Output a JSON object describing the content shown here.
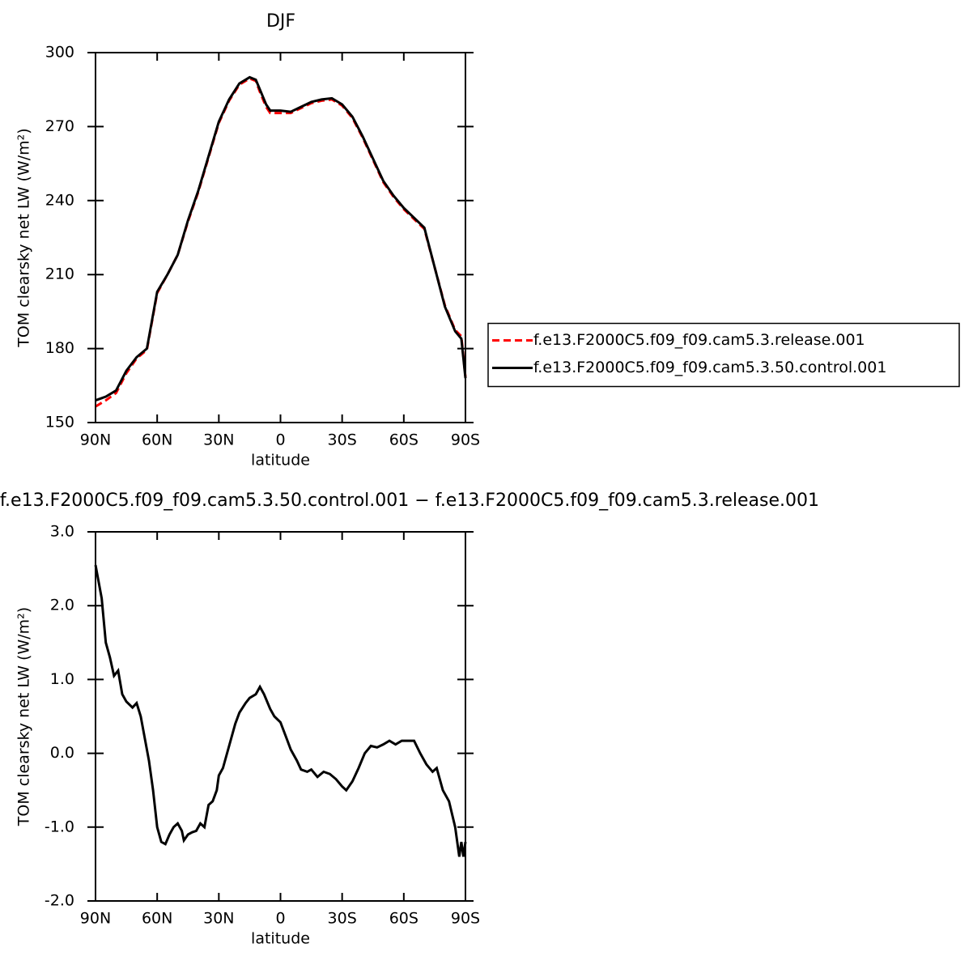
{
  "chart_data": [
    {
      "type": "line",
      "title": "DJF",
      "xlabel": "latitude",
      "ylabel": "TOM clearsky net LW (W/m²)",
      "x": [
        90,
        85,
        80,
        75,
        70,
        65,
        60,
        55,
        50,
        45,
        40,
        35,
        30,
        25,
        20,
        15,
        12,
        10,
        7,
        5,
        0,
        -5,
        -10,
        -15,
        -20,
        -25,
        -30,
        -35,
        -40,
        -45,
        -50,
        -55,
        -60,
        -65,
        -70,
        -75,
        -80,
        -85,
        -88,
        -90
      ],
      "series": [
        {
          "name": "f.e13.F2000C5.f09_f09.cam5.3.release.001",
          "color": "#ff0000",
          "dashed": true,
          "values": [
            156.5,
            159,
            162,
            170,
            176,
            179.5,
            202.5,
            210,
            218,
            231.5,
            243.5,
            257.5,
            271.5,
            280.5,
            287,
            289.5,
            288.5,
            284,
            278,
            275.5,
            275.5,
            275.5,
            277.5,
            279.5,
            280.5,
            281,
            278.5,
            273.5,
            265.5,
            256.5,
            247.5,
            241.5,
            236.5,
            232.5,
            228.5,
            213,
            197.5,
            187.5,
            185,
            168.5
          ]
        },
        {
          "name": "f.e13.F2000C5.f09_f09.cam5.3.50.control.001",
          "color": "#000000",
          "dashed": false,
          "values": [
            159,
            160.5,
            163,
            171,
            176.5,
            180,
            203,
            210,
            218,
            232,
            244,
            258,
            272,
            281,
            287.5,
            290,
            289,
            285,
            279,
            276.5,
            276.5,
            276,
            278,
            280,
            281,
            281.5,
            279,
            274,
            266,
            257,
            248,
            242,
            237,
            233,
            229,
            213,
            197,
            187,
            184,
            168
          ]
        }
      ],
      "xlim": [
        90,
        -90
      ],
      "xticks": [
        {
          "value": 90,
          "label": "90N"
        },
        {
          "value": 60,
          "label": "60N"
        },
        {
          "value": 30,
          "label": "30N"
        },
        0,
        {
          "value": -30,
          "label": "30S"
        },
        {
          "value": -60,
          "label": "60S"
        },
        {
          "value": -90,
          "label": "90S"
        }
      ],
      "ylim": [
        150,
        300
      ],
      "yticks": [
        150,
        180,
        210,
        240,
        270,
        300
      ],
      "legend": "right"
    },
    {
      "type": "line",
      "title": "f.e13.F2000C5.f09_f09.cam5.3.50.control.001 − f.e13.F2000C5.f09_f09.cam5.3.release.001",
      "xlabel": "latitude",
      "ylabel": "TOM clearsky net LW (W/m²)",
      "x": [
        90,
        87,
        85,
        83,
        81,
        79,
        77,
        75,
        72,
        70,
        68,
        66,
        64,
        62,
        60,
        58,
        56,
        54,
        52,
        50,
        48,
        47,
        45,
        43,
        41,
        39,
        37,
        35,
        33,
        31,
        30,
        28,
        25,
        22,
        20,
        17,
        15,
        12,
        10,
        8,
        5,
        3,
        0,
        -3,
        -5,
        -8,
        -10,
        -13,
        -15,
        -18,
        -21,
        -24,
        -27,
        -30,
        -32,
        -35,
        -38,
        -41,
        -44,
        -47,
        -50,
        -53,
        -56,
        -59,
        -62,
        -65,
        -68,
        -71,
        -74,
        -76,
        -79,
        -82,
        -85,
        -87,
        -88,
        -89,
        -90
      ],
      "series": [
        {
          "color": "#000000",
          "dashed": false,
          "values": [
            2.55,
            2.1,
            1.5,
            1.3,
            1.05,
            1.12,
            0.8,
            0.7,
            0.62,
            0.68,
            0.5,
            0.2,
            -0.1,
            -0.5,
            -1.0,
            -1.2,
            -1.23,
            -1.1,
            -1.0,
            -0.95,
            -1.05,
            -1.18,
            -1.1,
            -1.07,
            -1.05,
            -0.95,
            -1.0,
            -0.7,
            -0.65,
            -0.5,
            -0.3,
            -0.2,
            0.1,
            0.4,
            0.55,
            0.68,
            0.75,
            0.8,
            0.9,
            0.8,
            0.6,
            0.5,
            0.42,
            0.2,
            0.05,
            -0.1,
            -0.22,
            -0.25,
            -0.22,
            -0.32,
            -0.25,
            -0.28,
            -0.35,
            -0.45,
            -0.5,
            -0.38,
            -0.2,
            0.0,
            0.1,
            0.08,
            0.12,
            0.17,
            0.12,
            0.17,
            0.17,
            0.17,
            0.0,
            -0.15,
            -0.25,
            -0.2,
            -0.5,
            -0.65,
            -1.0,
            -1.4,
            -1.2,
            -1.4,
            -1.2
          ]
        }
      ],
      "xlim": [
        90,
        -90
      ],
      "xticks": [
        {
          "value": 90,
          "label": "90N"
        },
        {
          "value": 60,
          "label": "60N"
        },
        {
          "value": 30,
          "label": "30N"
        },
        0,
        {
          "value": -30,
          "label": "30S"
        },
        {
          "value": -60,
          "label": "60S"
        },
        {
          "value": -90,
          "label": "90S"
        }
      ],
      "ylim": [
        -2,
        3
      ],
      "yticks": [
        {
          "value": -2,
          "label": "-2.0"
        },
        {
          "value": -1,
          "label": "-1.0"
        },
        {
          "value": 0,
          "label": "0.0"
        },
        {
          "value": 1,
          "label": "1.0"
        },
        {
          "value": 2,
          "label": "2.0"
        },
        {
          "value": 3,
          "label": "3.0"
        }
      ]
    }
  ]
}
